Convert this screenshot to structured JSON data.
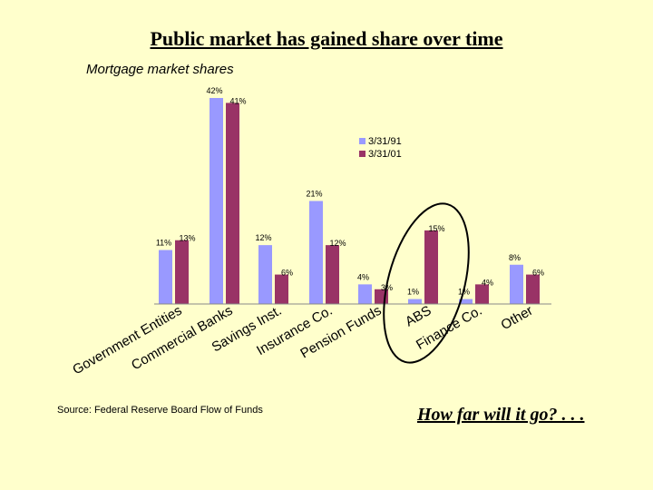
{
  "slide": {
    "title": "Public market has gained share over time",
    "subtitle": "Mortgage market shares",
    "source": "Source: Federal Reserve Board Flow of Funds",
    "closing": "How far will it go? . . ."
  },
  "chart_data": {
    "type": "bar",
    "title": "Mortgage market shares",
    "categories": [
      "Government Entities",
      "Commercial Banks",
      "Savings Inst.",
      "Insurance Co.",
      "Pension Funds",
      "ABS",
      "Finance Co.",
      "Other"
    ],
    "series": [
      {
        "name": "3/31/91",
        "color": "#9999ff",
        "values": [
          11,
          42,
          12,
          21,
          4,
          1,
          1,
          8
        ],
        "labels": [
          "11%",
          "42%",
          "12%",
          "21%",
          "4%",
          "1%",
          "1%",
          "8%"
        ]
      },
      {
        "name": "3/31/01",
        "color": "#993366",
        "values": [
          13,
          41,
          6,
          12,
          3,
          15,
          4,
          6
        ],
        "labels": [
          "13%",
          "41%",
          "6%",
          "12%",
          "3%",
          "15%",
          "4%",
          "6%"
        ]
      }
    ],
    "ylim": [
      0,
      42
    ],
    "grid": false,
    "legend_position": "right",
    "highlight": {
      "categories": [
        "ABS",
        "Finance Co."
      ],
      "shape": "ellipse",
      "color": "#000000"
    }
  }
}
